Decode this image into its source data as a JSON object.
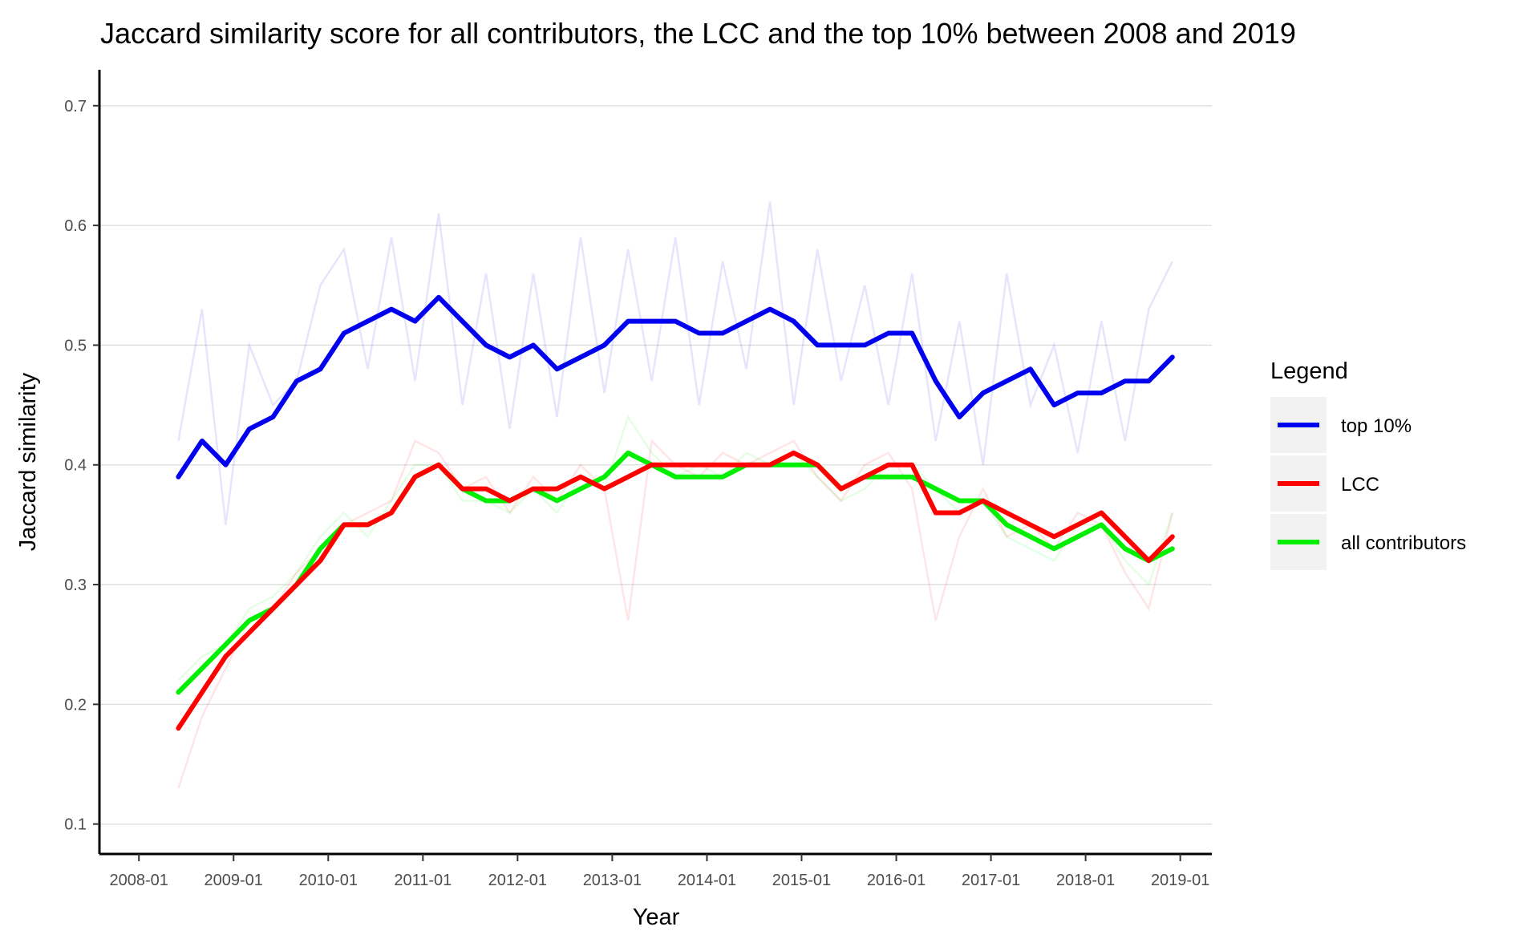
{
  "chart_data": {
    "type": "line",
    "title": "Jaccard similarity score for all contributors, the LCC and the top 10% between 2008 and 2019",
    "xlabel": "Year",
    "ylabel": "Jaccard similarity",
    "x_ticks": [
      "2008-01",
      "2009-01",
      "2010-01",
      "2011-01",
      "2012-01",
      "2013-01",
      "2014-01",
      "2015-01",
      "2016-01",
      "2017-01",
      "2018-01",
      "2019-01"
    ],
    "y_ticks": [
      "0.1",
      "0.2",
      "0.3",
      "0.4",
      "0.5",
      "0.6",
      "0.7"
    ],
    "xlim": [
      "2007-08",
      "2019-05"
    ],
    "ylim": [
      0.075,
      0.73
    ],
    "grid": "horizontal major",
    "legend": {
      "title": "Legend",
      "position": "right"
    },
    "series": [
      {
        "name": "top 10%",
        "color": "#0000ee",
        "x": [
          "2008-06",
          "2008-09",
          "2008-12",
          "2009-03",
          "2009-06",
          "2009-09",
          "2009-12",
          "2010-03",
          "2010-06",
          "2010-09",
          "2010-12",
          "2011-03",
          "2011-06",
          "2011-09",
          "2011-12",
          "2012-03",
          "2012-06",
          "2012-09",
          "2012-12",
          "2013-03",
          "2013-06",
          "2013-09",
          "2013-12",
          "2014-03",
          "2014-06",
          "2014-09",
          "2014-12",
          "2015-03",
          "2015-06",
          "2015-09",
          "2015-12",
          "2016-03",
          "2016-06",
          "2016-09",
          "2016-12",
          "2017-03",
          "2017-06",
          "2017-09",
          "2017-12",
          "2018-03",
          "2018-06",
          "2018-09",
          "2018-12"
        ],
        "y": [
          0.39,
          0.42,
          0.4,
          0.43,
          0.44,
          0.47,
          0.48,
          0.51,
          0.52,
          0.53,
          0.52,
          0.54,
          0.52,
          0.5,
          0.49,
          0.5,
          0.48,
          0.49,
          0.5,
          0.52,
          0.52,
          0.52,
          0.51,
          0.51,
          0.52,
          0.53,
          0.52,
          0.5,
          0.5,
          0.5,
          0.51,
          0.51,
          0.47,
          0.44,
          0.46,
          0.47,
          0.48,
          0.45,
          0.46,
          0.46,
          0.47,
          0.47,
          0.49
        ],
        "raw_y": [
          0.42,
          0.53,
          0.35,
          0.5,
          0.45,
          0.47,
          0.55,
          0.58,
          0.48,
          0.59,
          0.47,
          0.61,
          0.45,
          0.56,
          0.43,
          0.56,
          0.44,
          0.59,
          0.46,
          0.58,
          0.47,
          0.59,
          0.45,
          0.57,
          0.48,
          0.62,
          0.45,
          0.58,
          0.47,
          0.55,
          0.45,
          0.56,
          0.42,
          0.52,
          0.4,
          0.56,
          0.45,
          0.5,
          0.41,
          0.52,
          0.42,
          0.53,
          0.57
        ]
      },
      {
        "name": "LCC",
        "color": "#ff0000",
        "x": [
          "2008-06",
          "2008-09",
          "2008-12",
          "2009-03",
          "2009-06",
          "2009-09",
          "2009-12",
          "2010-03",
          "2010-06",
          "2010-09",
          "2010-12",
          "2011-03",
          "2011-06",
          "2011-09",
          "2011-12",
          "2012-03",
          "2012-06",
          "2012-09",
          "2012-12",
          "2013-03",
          "2013-06",
          "2013-09",
          "2013-12",
          "2014-03",
          "2014-06",
          "2014-09",
          "2014-12",
          "2015-03",
          "2015-06",
          "2015-09",
          "2015-12",
          "2016-03",
          "2016-06",
          "2016-09",
          "2016-12",
          "2017-03",
          "2017-06",
          "2017-09",
          "2017-12",
          "2018-03",
          "2018-06",
          "2018-09",
          "2018-12"
        ],
        "y": [
          0.18,
          0.21,
          0.24,
          0.26,
          0.28,
          0.3,
          0.32,
          0.35,
          0.35,
          0.36,
          0.39,
          0.4,
          0.38,
          0.38,
          0.37,
          0.38,
          0.38,
          0.39,
          0.38,
          0.39,
          0.4,
          0.4,
          0.4,
          0.4,
          0.4,
          0.4,
          0.41,
          0.4,
          0.38,
          0.39,
          0.4,
          0.4,
          0.36,
          0.36,
          0.37,
          0.36,
          0.35,
          0.34,
          0.35,
          0.36,
          0.34,
          0.32,
          0.34
        ],
        "raw_y": [
          0.13,
          0.19,
          0.23,
          0.27,
          0.28,
          0.31,
          0.33,
          0.35,
          0.36,
          0.37,
          0.42,
          0.41,
          0.38,
          0.39,
          0.36,
          0.39,
          0.37,
          0.4,
          0.38,
          0.27,
          0.42,
          0.4,
          0.39,
          0.41,
          0.4,
          0.41,
          0.42,
          0.39,
          0.37,
          0.4,
          0.41,
          0.38,
          0.27,
          0.34,
          0.38,
          0.34,
          0.35,
          0.33,
          0.36,
          0.35,
          0.31,
          0.28,
          0.36
        ]
      },
      {
        "name": "all contributors",
        "color": "#00ee00",
        "x": [
          "2008-06",
          "2008-09",
          "2008-12",
          "2009-03",
          "2009-06",
          "2009-09",
          "2009-12",
          "2010-03",
          "2010-06",
          "2010-09",
          "2010-12",
          "2011-03",
          "2011-06",
          "2011-09",
          "2011-12",
          "2012-03",
          "2012-06",
          "2012-09",
          "2012-12",
          "2013-03",
          "2013-06",
          "2013-09",
          "2013-12",
          "2014-03",
          "2014-06",
          "2014-09",
          "2014-12",
          "2015-03",
          "2015-06",
          "2015-09",
          "2015-12",
          "2016-03",
          "2016-06",
          "2016-09",
          "2016-12",
          "2017-03",
          "2017-06",
          "2017-09",
          "2017-12",
          "2018-03",
          "2018-06",
          "2018-09",
          "2018-12"
        ],
        "y": [
          0.21,
          0.23,
          0.25,
          0.27,
          0.28,
          0.3,
          0.33,
          0.35,
          0.35,
          0.36,
          0.39,
          0.4,
          0.38,
          0.37,
          0.37,
          0.38,
          0.37,
          0.38,
          0.39,
          0.41,
          0.4,
          0.39,
          0.39,
          0.39,
          0.4,
          0.4,
          0.4,
          0.4,
          0.38,
          0.39,
          0.39,
          0.39,
          0.38,
          0.37,
          0.37,
          0.35,
          0.34,
          0.33,
          0.34,
          0.35,
          0.33,
          0.32,
          0.33
        ],
        "raw_y": [
          0.22,
          0.24,
          0.25,
          0.28,
          0.29,
          0.31,
          0.34,
          0.36,
          0.34,
          0.37,
          0.4,
          0.4,
          0.37,
          0.37,
          0.36,
          0.38,
          0.36,
          0.39,
          0.38,
          0.44,
          0.41,
          0.39,
          0.4,
          0.39,
          0.41,
          0.4,
          0.41,
          0.39,
          0.37,
          0.38,
          0.4,
          0.4,
          0.38,
          0.36,
          0.37,
          0.34,
          0.33,
          0.32,
          0.35,
          0.35,
          0.32,
          0.3,
          0.36
        ]
      }
    ]
  }
}
